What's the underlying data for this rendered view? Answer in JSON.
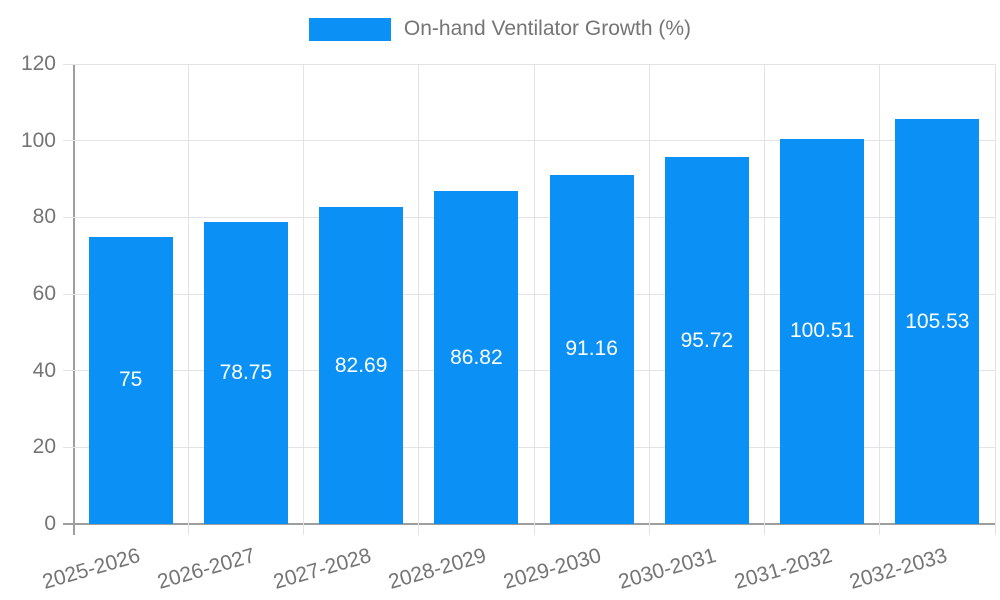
{
  "chart_data": {
    "type": "bar",
    "title": "On-hand Ventilator Growth (%)",
    "legend": {
      "label": "On-hand Ventilator Growth (%)",
      "position": "top"
    },
    "categories": [
      "2025-2026",
      "2026-2027",
      "2027-2028",
      "2028-2029",
      "2029-2030",
      "2030-2031",
      "2031-2032",
      "2032-2033"
    ],
    "series": [
      {
        "name": "On-hand Ventilator Growth (%)",
        "values": [
          75,
          78.75,
          82.69,
          86.82,
          91.16,
          95.72,
          100.51,
          105.53
        ],
        "value_labels": [
          "75",
          "78.75",
          "82.69",
          "86.82",
          "91.16",
          "95.72",
          "100.51",
          "105.53"
        ]
      }
    ],
    "xlabel": "",
    "ylabel": "",
    "ylim": [
      0,
      120
    ],
    "yticks": [
      0,
      20,
      40,
      60,
      80,
      100,
      120
    ],
    "grid": true,
    "colors": {
      "bar": "#0b90f5",
      "value_label": "#ffffff",
      "axis_text": "#757575",
      "gridline": "#e3e3e3",
      "axis_line": "#9e9e9e",
      "background": "#ffffff"
    }
  }
}
